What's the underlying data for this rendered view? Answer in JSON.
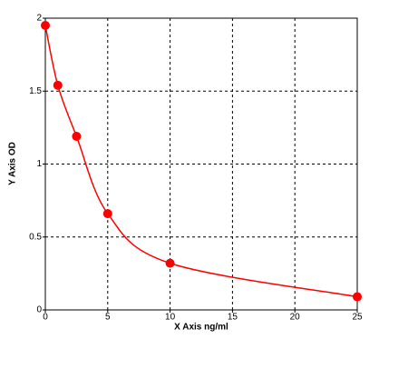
{
  "chart_data": {
    "type": "scatter",
    "x_label": "X Axis ng/ml",
    "y_label": "Y Axis OD",
    "x": [
      0,
      1,
      2.5,
      5,
      10,
      25
    ],
    "series": [
      {
        "color": "#ff0000",
        "values": [
          1.95,
          1.54,
          1.19,
          0.66,
          0.32,
          0.09
        ]
      }
    ],
    "smooth_line": true,
    "xlim": [
      0,
      25
    ],
    "xticks": [
      0,
      5,
      10,
      15,
      20,
      25
    ],
    "ylim": [
      0,
      2
    ],
    "yticks": [
      0,
      0.5,
      1,
      1.5,
      2
    ],
    "grid": true
  }
}
